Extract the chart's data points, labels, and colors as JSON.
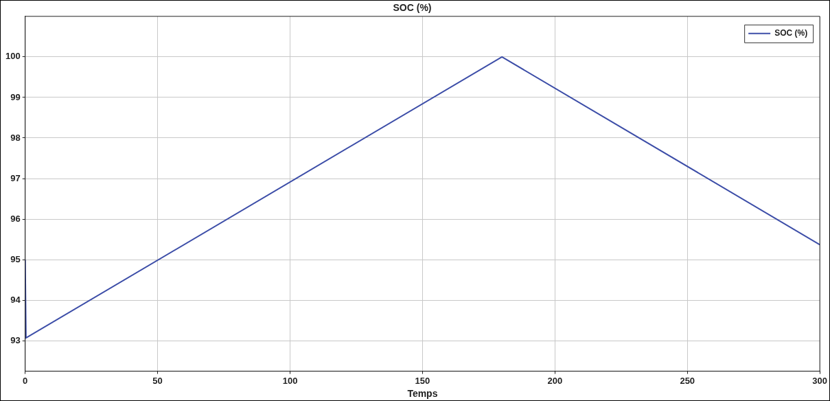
{
  "chart_data": {
    "type": "line",
    "title": "SOC (%)",
    "xlabel": "Temps",
    "xlim": [
      0,
      300
    ],
    "xticks": [
      0,
      50,
      100,
      150,
      200,
      250,
      300
    ],
    "ylim": [
      92.25,
      101
    ],
    "yticks": [
      93,
      94,
      95,
      96,
      97,
      98,
      99,
      100
    ],
    "grid": true,
    "legend": "top right",
    "marker": "none",
    "line_style": "solid",
    "series": [
      {
        "name": "SOC (%)",
        "color": "#3d4ea8",
        "x": [
          0,
          0.3,
          180,
          300
        ],
        "values": [
          95,
          93.07,
          100,
          95.37
        ]
      }
    ]
  }
}
